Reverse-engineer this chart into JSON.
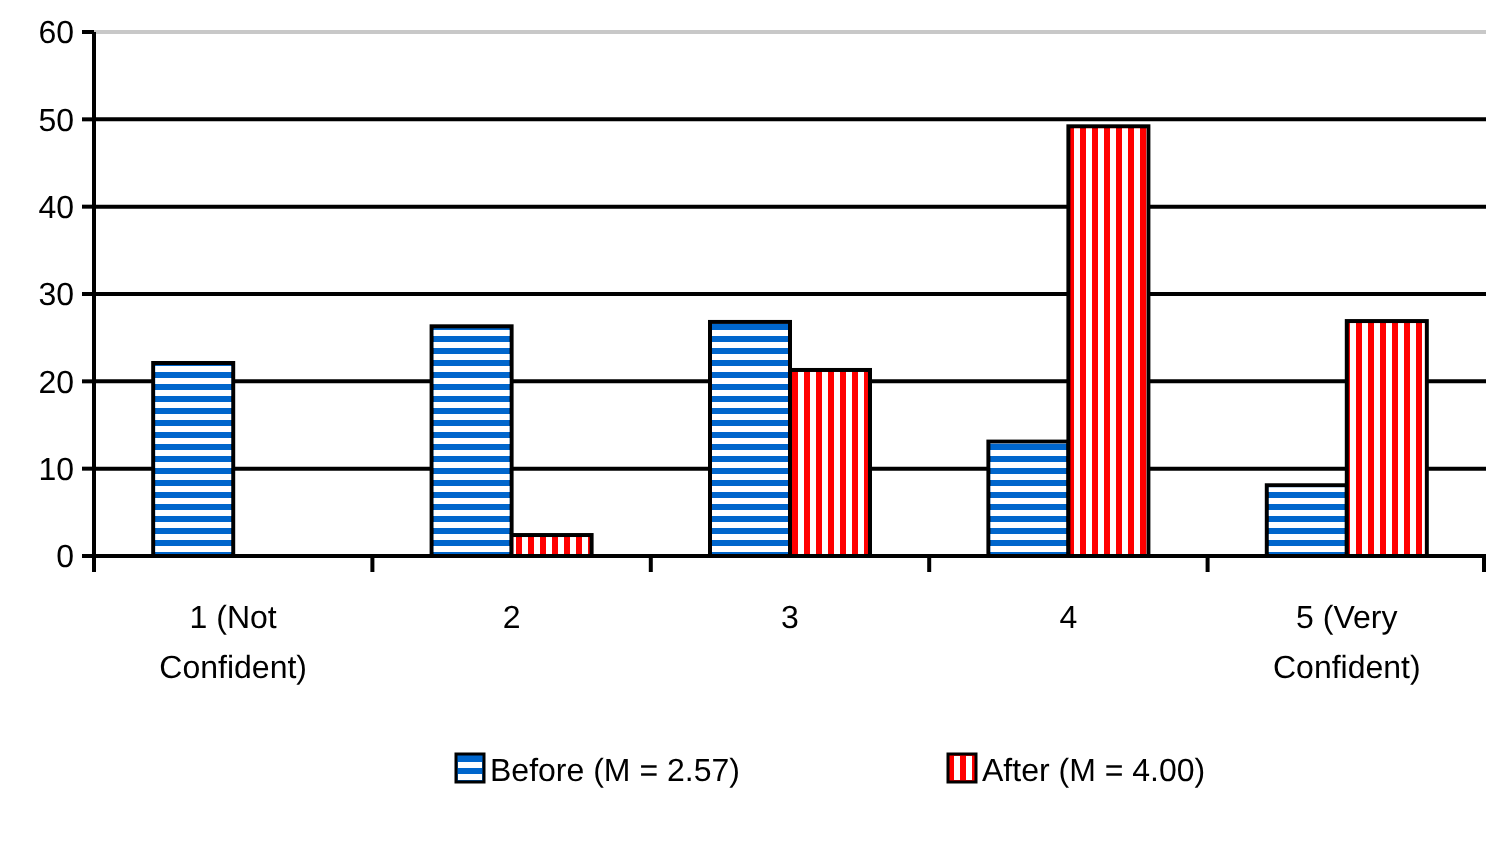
{
  "chart_data": {
    "type": "bar",
    "categories": [
      "1 (Not Confident)",
      "2",
      "3",
      "4",
      "5 (Very Confident)"
    ],
    "series": [
      {
        "name": "Before (M = 2.57)",
        "color": "#0066cc",
        "values": [
          22.1,
          26.3,
          26.8,
          13.1,
          8.1
        ]
      },
      {
        "name": "After (M = 4.00)",
        "color": "#ff0000",
        "values": [
          0,
          2.4,
          21.3,
          49.2,
          26.9
        ]
      }
    ],
    "ylim": [
      0,
      60
    ],
    "yticks": [
      0,
      10,
      20,
      30,
      40,
      50,
      60
    ],
    "grid": "y",
    "legend": "bottom"
  }
}
